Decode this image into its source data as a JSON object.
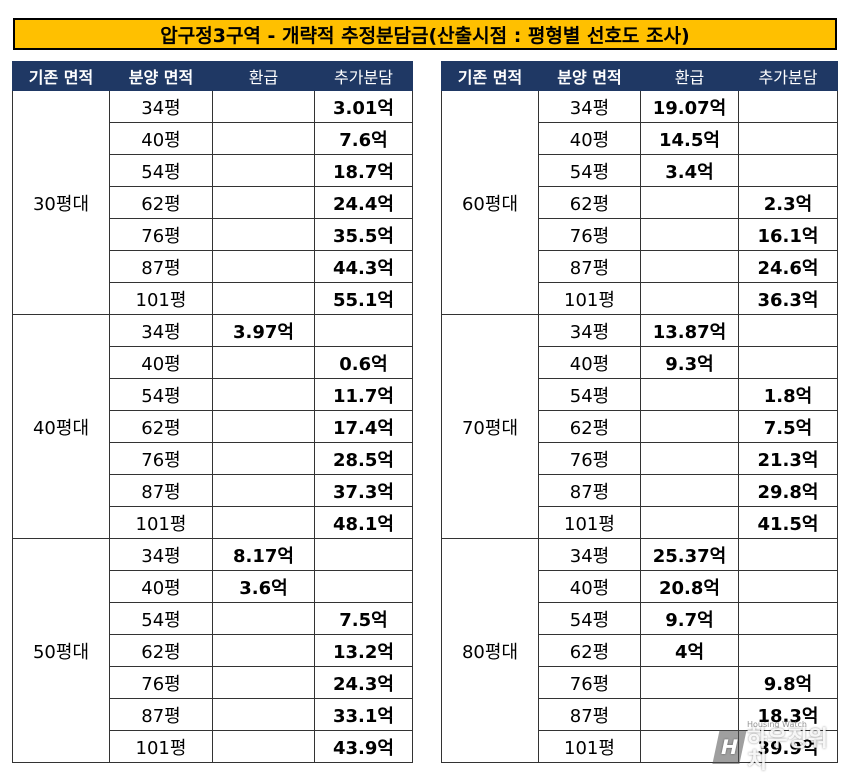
{
  "title": "압구정3구역 - 개략적 추정분담금(산출시점 : 평형별 선호도 조사)",
  "headers": [
    "기존 면적",
    "분양 면적",
    "환급",
    "추가분담"
  ],
  "left_table": [
    {
      "group": "30평대",
      "rows": [
        {
          "area": "34평",
          "refund": "",
          "additional": "3.01억"
        },
        {
          "area": "40평",
          "refund": "",
          "additional": "7.6억"
        },
        {
          "area": "54평",
          "refund": "",
          "additional": "18.7억"
        },
        {
          "area": "62평",
          "refund": "",
          "additional": "24.4억"
        },
        {
          "area": "76평",
          "refund": "",
          "additional": "35.5억"
        },
        {
          "area": "87평",
          "refund": "",
          "additional": "44.3억"
        },
        {
          "area": "101평",
          "refund": "",
          "additional": "55.1억"
        }
      ]
    },
    {
      "group": "40평대",
      "rows": [
        {
          "area": "34평",
          "refund": "3.97억",
          "additional": ""
        },
        {
          "area": "40평",
          "refund": "",
          "additional": "0.6억"
        },
        {
          "area": "54평",
          "refund": "",
          "additional": "11.7억"
        },
        {
          "area": "62평",
          "refund": "",
          "additional": "17.4억"
        },
        {
          "area": "76평",
          "refund": "",
          "additional": "28.5억"
        },
        {
          "area": "87평",
          "refund": "",
          "additional": "37.3억"
        },
        {
          "area": "101평",
          "refund": "",
          "additional": "48.1억"
        }
      ]
    },
    {
      "group": "50평대",
      "rows": [
        {
          "area": "34평",
          "refund": "8.17억",
          "additional": ""
        },
        {
          "area": "40평",
          "refund": "3.6억",
          "additional": ""
        },
        {
          "area": "54평",
          "refund": "",
          "additional": "7.5억"
        },
        {
          "area": "62평",
          "refund": "",
          "additional": "13.2억"
        },
        {
          "area": "76평",
          "refund": "",
          "additional": "24.3억"
        },
        {
          "area": "87평",
          "refund": "",
          "additional": "33.1억"
        },
        {
          "area": "101평",
          "refund": "",
          "additional": "43.9억"
        }
      ]
    }
  ],
  "right_table": [
    {
      "group": "60평대",
      "rows": [
        {
          "area": "34평",
          "refund": "19.07억",
          "additional": ""
        },
        {
          "area": "40평",
          "refund": "14.5억",
          "additional": ""
        },
        {
          "area": "54평",
          "refund": "3.4억",
          "additional": ""
        },
        {
          "area": "62평",
          "refund": "",
          "additional": "2.3억"
        },
        {
          "area": "76평",
          "refund": "",
          "additional": "16.1억"
        },
        {
          "area": "87평",
          "refund": "",
          "additional": "24.6억"
        },
        {
          "area": "101평",
          "refund": "",
          "additional": "36.3억"
        }
      ]
    },
    {
      "group": "70평대",
      "rows": [
        {
          "area": "34평",
          "refund": "13.87억",
          "additional": ""
        },
        {
          "area": "40평",
          "refund": "9.3억",
          "additional": ""
        },
        {
          "area": "54평",
          "refund": "",
          "additional": "1.8억"
        },
        {
          "area": "62평",
          "refund": "",
          "additional": "7.5억"
        },
        {
          "area": "76평",
          "refund": "",
          "additional": "21.3억"
        },
        {
          "area": "87평",
          "refund": "",
          "additional": "29.8억"
        },
        {
          "area": "101평",
          "refund": "",
          "additional": "41.5억"
        }
      ]
    },
    {
      "group": "80평대",
      "rows": [
        {
          "area": "34평",
          "refund": "25.37억",
          "additional": ""
        },
        {
          "area": "40평",
          "refund": "20.8억",
          "additional": ""
        },
        {
          "area": "54평",
          "refund": "9.7억",
          "additional": ""
        },
        {
          "area": "62평",
          "refund": "4억",
          "additional": ""
        },
        {
          "area": "76평",
          "refund": "",
          "additional": "9.8억"
        },
        {
          "area": "87평",
          "refund": "",
          "additional": "18.3억"
        },
        {
          "area": "101평",
          "refund": "",
          "additional": "39.9억"
        }
      ]
    }
  ],
  "watermark": {
    "logo": "H",
    "sub": "Housing Watch",
    "main": "하우징워치"
  },
  "colors": {
    "title_bg": "#FFC000",
    "header_bg": "#1F3864",
    "refund_text": "#E00000"
  }
}
